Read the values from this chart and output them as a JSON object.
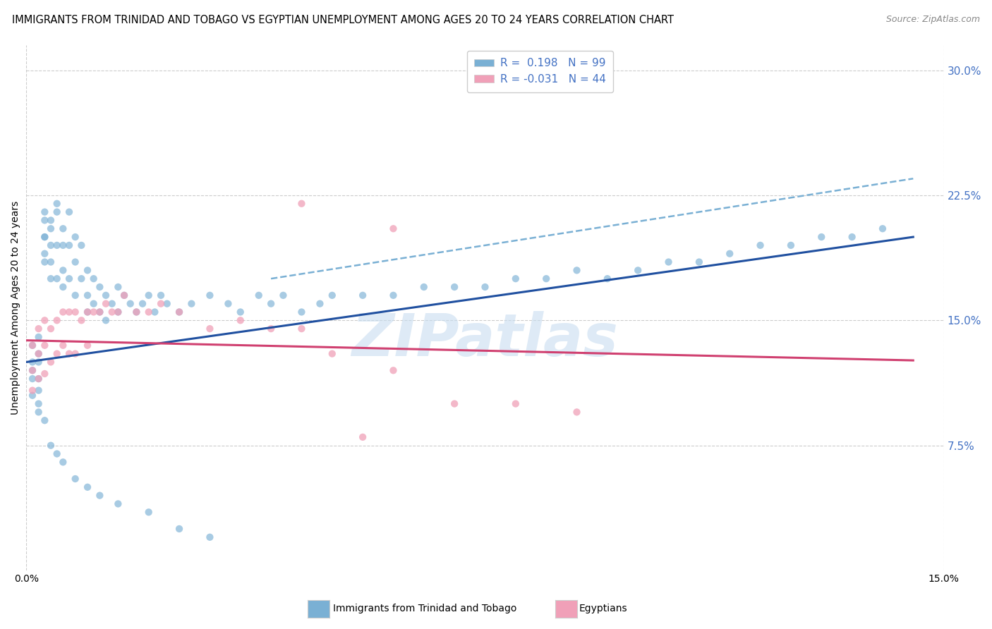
{
  "title": "IMMIGRANTS FROM TRINIDAD AND TOBAGO VS EGYPTIAN UNEMPLOYMENT AMONG AGES 20 TO 24 YEARS CORRELATION CHART",
  "source": "Source: ZipAtlas.com",
  "ylabel_label": "Unemployment Among Ages 20 to 24 years",
  "footer_blue": "Immigrants from Trinidad and Tobago",
  "footer_pink": "Egyptians",
  "xlim": [
    0.0,
    0.15
  ],
  "ylim": [
    0.0,
    0.315
  ],
  "ytick_vals": [
    0.075,
    0.15,
    0.225,
    0.3
  ],
  "ytick_labels": [
    "7.5%",
    "15.0%",
    "22.5%",
    "30.0%"
  ],
  "xtick_vals": [
    0.0,
    0.15
  ],
  "xtick_labels": [
    "0.0%",
    "15.0%"
  ],
  "blue_color": "#7ab0d4",
  "pink_color": "#f0a0b8",
  "line_blue_color": "#2050a0",
  "line_pink_color": "#d04070",
  "line_blue_dashed_color": "#7ab0d4",
  "grid_color": "#cccccc",
  "right_axis_color": "#4472c4",
  "watermark_color": "#c8ddf0",
  "background": "#ffffff",
  "title_fontsize": 10.5,
  "scatter_size": 55,
  "legend_blue_label": "R =  0.198   N = 99",
  "legend_pink_label": "R = -0.031   N = 44",
  "blue_scatter_x": [
    0.001,
    0.001,
    0.001,
    0.001,
    0.001,
    0.002,
    0.002,
    0.002,
    0.002,
    0.002,
    0.002,
    0.002,
    0.003,
    0.003,
    0.003,
    0.003,
    0.003,
    0.003,
    0.004,
    0.004,
    0.004,
    0.004,
    0.004,
    0.005,
    0.005,
    0.005,
    0.005,
    0.006,
    0.006,
    0.006,
    0.006,
    0.007,
    0.007,
    0.007,
    0.008,
    0.008,
    0.008,
    0.009,
    0.009,
    0.01,
    0.01,
    0.01,
    0.011,
    0.011,
    0.012,
    0.012,
    0.013,
    0.013,
    0.014,
    0.015,
    0.015,
    0.016,
    0.017,
    0.018,
    0.019,
    0.02,
    0.021,
    0.022,
    0.023,
    0.025,
    0.027,
    0.03,
    0.033,
    0.035,
    0.038,
    0.04,
    0.042,
    0.045,
    0.048,
    0.05,
    0.055,
    0.06,
    0.065,
    0.07,
    0.075,
    0.08,
    0.085,
    0.09,
    0.095,
    0.1,
    0.105,
    0.11,
    0.115,
    0.12,
    0.125,
    0.13,
    0.135,
    0.14,
    0.003,
    0.004,
    0.005,
    0.006,
    0.008,
    0.01,
    0.012,
    0.015,
    0.02,
    0.025,
    0.03
  ],
  "blue_scatter_y": [
    0.135,
    0.125,
    0.12,
    0.115,
    0.105,
    0.14,
    0.13,
    0.125,
    0.115,
    0.108,
    0.1,
    0.095,
    0.2,
    0.21,
    0.215,
    0.2,
    0.19,
    0.185,
    0.195,
    0.21,
    0.205,
    0.185,
    0.175,
    0.22,
    0.215,
    0.195,
    0.175,
    0.205,
    0.195,
    0.18,
    0.17,
    0.215,
    0.195,
    0.175,
    0.2,
    0.185,
    0.165,
    0.195,
    0.175,
    0.18,
    0.165,
    0.155,
    0.175,
    0.16,
    0.17,
    0.155,
    0.165,
    0.15,
    0.16,
    0.17,
    0.155,
    0.165,
    0.16,
    0.155,
    0.16,
    0.165,
    0.155,
    0.165,
    0.16,
    0.155,
    0.16,
    0.165,
    0.16,
    0.155,
    0.165,
    0.16,
    0.165,
    0.155,
    0.16,
    0.165,
    0.165,
    0.165,
    0.17,
    0.17,
    0.17,
    0.175,
    0.175,
    0.18,
    0.175,
    0.18,
    0.185,
    0.185,
    0.19,
    0.195,
    0.195,
    0.2,
    0.2,
    0.205,
    0.09,
    0.075,
    0.07,
    0.065,
    0.055,
    0.05,
    0.045,
    0.04,
    0.035,
    0.025,
    0.02
  ],
  "pink_scatter_x": [
    0.001,
    0.001,
    0.001,
    0.002,
    0.002,
    0.002,
    0.003,
    0.003,
    0.003,
    0.004,
    0.004,
    0.005,
    0.005,
    0.006,
    0.006,
    0.007,
    0.007,
    0.008,
    0.008,
    0.009,
    0.01,
    0.01,
    0.011,
    0.012,
    0.013,
    0.014,
    0.015,
    0.016,
    0.018,
    0.02,
    0.022,
    0.025,
    0.03,
    0.035,
    0.04,
    0.045,
    0.05,
    0.055,
    0.06,
    0.07,
    0.08,
    0.09,
    0.045,
    0.06
  ],
  "pink_scatter_y": [
    0.135,
    0.12,
    0.108,
    0.145,
    0.13,
    0.115,
    0.15,
    0.135,
    0.118,
    0.145,
    0.125,
    0.15,
    0.13,
    0.155,
    0.135,
    0.155,
    0.13,
    0.155,
    0.13,
    0.15,
    0.155,
    0.135,
    0.155,
    0.155,
    0.16,
    0.155,
    0.155,
    0.165,
    0.155,
    0.155,
    0.16,
    0.155,
    0.145,
    0.15,
    0.145,
    0.145,
    0.13,
    0.08,
    0.12,
    0.1,
    0.1,
    0.095,
    0.22,
    0.205
  ]
}
